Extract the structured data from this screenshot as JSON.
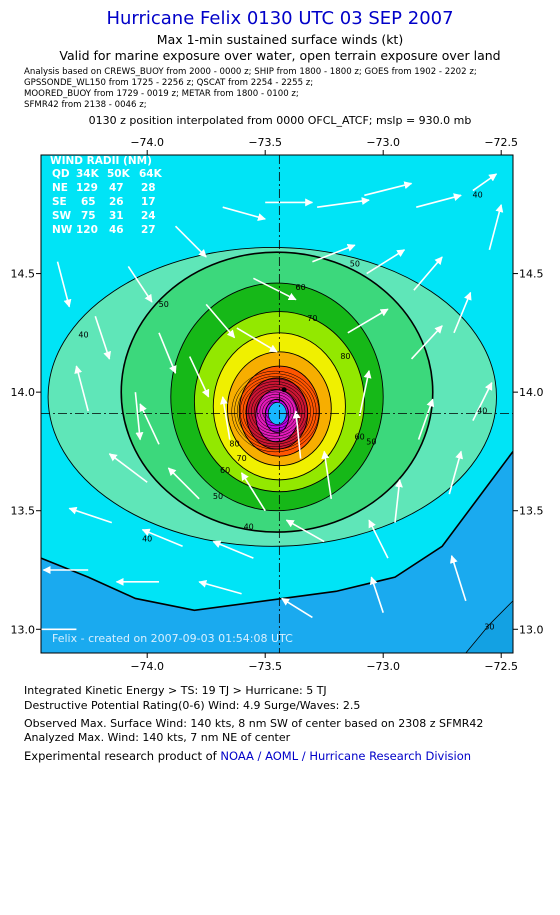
{
  "header": {
    "title": "Hurricane Felix 0130 UTC 03 SEP 2007",
    "subtitle": "Max 1-min sustained surface winds (kt)",
    "valid": "Valid for marine exposure over water, open terrain exposure over land",
    "analysis_lines": [
      "Analysis based on  CREWS_BUOY from 2000 - 0000 z;  SHIP from 1800 - 1800 z;  GOES from 1902 - 2202 z;",
      "GPSSONDE_WL150 from 1725 - 2256 z;  QSCAT from 2254 - 2255 z;",
      "MOORED_BUOY from 1729 - 0019 z;  METAR from 1800 - 0100 z;",
      "SFMR42 from 2138 - 0046 z;"
    ],
    "position_line": "0130 z position interpolated from 0000 OFCL_ATCF; mslp = 930.0 mb"
  },
  "chart_data": {
    "type": "heatmap",
    "title": "Hurricane Felix 0130 UTC 03 SEP 2007",
    "subtitle": "Max 1-min sustained surface winds (kt)",
    "xlim": [
      -74.45,
      -72.45
    ],
    "ylim": [
      12.9,
      15.0
    ],
    "x_ticks": [
      -74.0,
      -73.5,
      -73.0,
      -72.5
    ],
    "x_tick_labels": [
      "−74.0",
      "−73.5",
      "−73.0",
      "−72.5"
    ],
    "y_ticks": [
      13.0,
      13.5,
      14.0,
      14.5
    ],
    "y_tick_labels": [
      "13.0",
      "13.5",
      "14.0",
      "14.5"
    ],
    "center": {
      "lon": -73.44,
      "lat": 13.91
    },
    "max_wind_point": {
      "lon": -73.42,
      "lat": 14.01
    },
    "contour_labels": [
      {
        "text": "30",
        "lon": -72.55,
        "lat": 13.0
      },
      {
        "text": "40",
        "lon": -74.27,
        "lat": 14.23
      },
      {
        "text": "40",
        "lon": -72.6,
        "lat": 14.82
      },
      {
        "text": "40",
        "lon": -73.57,
        "lat": 13.42
      },
      {
        "text": "40",
        "lon": -74.0,
        "lat": 13.37
      },
      {
        "text": "40",
        "lon": -72.58,
        "lat": 13.91
      },
      {
        "text": "50",
        "lon": -73.93,
        "lat": 14.36
      },
      {
        "text": "50",
        "lon": -73.12,
        "lat": 14.53
      },
      {
        "text": "50",
        "lon": -73.7,
        "lat": 13.55
      },
      {
        "text": "50",
        "lon": -73.05,
        "lat": 13.78
      },
      {
        "text": "60",
        "lon": -73.35,
        "lat": 14.43
      },
      {
        "text": "60",
        "lon": -73.67,
        "lat": 13.66
      },
      {
        "text": "60",
        "lon": -73.1,
        "lat": 13.8
      },
      {
        "text": "70",
        "lon": -73.3,
        "lat": 14.3
      },
      {
        "text": "70",
        "lon": -73.6,
        "lat": 13.71
      },
      {
        "text": "80",
        "lon": -73.63,
        "lat": 13.77
      },
      {
        "text": "80",
        "lon": -73.16,
        "lat": 14.14
      }
    ],
    "contour_levels": [
      40,
      50,
      60,
      70,
      80,
      90,
      100,
      110,
      120,
      130
    ],
    "contour_rings": [
      {
        "level": 30,
        "cx": -73.44,
        "cy": 13.9,
        "rx": 1.18,
        "ry": 0.97,
        "bold": true
      },
      {
        "level": 40,
        "cx": -73.47,
        "cy": 13.98,
        "rx": 0.95,
        "ry": 0.63,
        "bold": false
      },
      {
        "level": 50,
        "cx": -73.45,
        "cy": 14.0,
        "rx": 0.66,
        "ry": 0.59,
        "bold": true
      },
      {
        "level": 60,
        "cx": -73.45,
        "cy": 13.98,
        "rx": 0.45,
        "ry": 0.48,
        "bold": false
      },
      {
        "level": 70,
        "cx": -73.44,
        "cy": 13.96,
        "rx": 0.36,
        "ry": 0.38,
        "bold": false
      },
      {
        "level": 80,
        "cx": -73.44,
        "cy": 13.94,
        "rx": 0.28,
        "ry": 0.31,
        "bold": false
      },
      {
        "level": 90,
        "cx": -73.44,
        "cy": 13.93,
        "rx": 0.22,
        "ry": 0.24,
        "bold": false
      },
      {
        "level": 100,
        "cx": -73.44,
        "cy": 13.92,
        "rx": 0.17,
        "ry": 0.19,
        "bold": false
      },
      {
        "level": 110,
        "cx": -73.45,
        "cy": 13.91,
        "rx": 0.13,
        "ry": 0.15,
        "bold": false
      },
      {
        "level": 120,
        "cx": -73.45,
        "cy": 13.9,
        "rx": 0.09,
        "ry": 0.11,
        "bold": false
      },
      {
        "level": 130,
        "cx": -73.45,
        "cy": 13.9,
        "rx": 0.05,
        "ry": 0.07,
        "bold": false
      }
    ],
    "colors": {
      "fill_20": "#1aaaef",
      "fill_30": "#00e4f6",
      "fill_40": "#5fe6b8",
      "fill_50": "#3cd87c",
      "fill_60": "#16b818",
      "fill_70": "#93e800",
      "fill_80": "#f0f000",
      "fill_90": "#f7ae00",
      "fill_100": "#ff5500",
      "fill_110": "#cc1533",
      "fill_120": "#e21ab8",
      "fill_130": "#bb00e6",
      "arrow": "#ffffff",
      "title": "#0000c8",
      "link": "#0000c8"
    },
    "wind_radii": {
      "heading": "WIND RADII (NM)",
      "columns": [
        "QD",
        "34K",
        "50K",
        "64K"
      ],
      "rows": [
        [
          "NE",
          "129",
          "47",
          "28"
        ],
        [
          "SE",
          "65",
          "26",
          "17"
        ],
        [
          "SW",
          "75",
          "31",
          "24"
        ],
        [
          "NW",
          "120",
          "46",
          "27"
        ]
      ]
    },
    "watermark": "Felix - created on 2007-09-03 01:54:08 UTC",
    "wind_vectors": [
      {
        "lon": -74.38,
        "lat": 14.55,
        "dlon": 0.05,
        "dlat": -0.19
      },
      {
        "lon": -74.22,
        "lat": 14.32,
        "dlon": 0.06,
        "dlat": -0.18
      },
      {
        "lon": -74.08,
        "lat": 14.53,
        "dlon": 0.1,
        "dlat": -0.15
      },
      {
        "lon": -73.88,
        "lat": 14.7,
        "dlon": 0.13,
        "dlat": -0.13
      },
      {
        "lon": -73.68,
        "lat": 14.78,
        "dlon": 0.18,
        "dlat": -0.05
      },
      {
        "lon": -73.5,
        "lat": 14.8,
        "dlon": 0.2,
        "dlat": 0.0
      },
      {
        "lon": -73.28,
        "lat": 14.78,
        "dlon": 0.22,
        "dlat": 0.03
      },
      {
        "lon": -73.08,
        "lat": 14.83,
        "dlon": 0.2,
        "dlat": 0.05
      },
      {
        "lon": -72.86,
        "lat": 14.78,
        "dlon": 0.19,
        "dlat": 0.05
      },
      {
        "lon": -72.62,
        "lat": 14.85,
        "dlon": 0.1,
        "dlat": 0.07
      },
      {
        "lon": -72.55,
        "lat": 14.6,
        "dlon": 0.05,
        "dlat": 0.19
      },
      {
        "lon": -73.95,
        "lat": 14.25,
        "dlon": 0.07,
        "dlat": -0.17
      },
      {
        "lon": -73.75,
        "lat": 14.37,
        "dlon": 0.12,
        "dlat": -0.14
      },
      {
        "lon": -73.55,
        "lat": 14.48,
        "dlon": 0.18,
        "dlat": -0.09
      },
      {
        "lon": -73.3,
        "lat": 14.55,
        "dlon": 0.18,
        "dlat": 0.07
      },
      {
        "lon": -73.07,
        "lat": 14.5,
        "dlon": 0.16,
        "dlat": 0.1
      },
      {
        "lon": -72.87,
        "lat": 14.43,
        "dlon": 0.12,
        "dlat": 0.14
      },
      {
        "lon": -72.7,
        "lat": 14.25,
        "dlon": 0.07,
        "dlat": 0.17
      },
      {
        "lon": -74.05,
        "lat": 14.0,
        "dlon": 0.02,
        "dlat": -0.2
      },
      {
        "lon": -73.82,
        "lat": 14.15,
        "dlon": 0.08,
        "dlat": -0.17
      },
      {
        "lon": -73.62,
        "lat": 14.27,
        "dlon": 0.17,
        "dlat": -0.1
      },
      {
        "lon": -73.15,
        "lat": 14.25,
        "dlon": 0.17,
        "dlat": 0.1
      },
      {
        "lon": -72.88,
        "lat": 14.14,
        "dlon": 0.13,
        "dlat": 0.14
      },
      {
        "lon": -72.62,
        "lat": 13.88,
        "dlon": 0.08,
        "dlat": 0.16
      },
      {
        "lon": -74.25,
        "lat": 13.92,
        "dlon": -0.05,
        "dlat": 0.19
      },
      {
        "lon": -73.95,
        "lat": 13.78,
        "dlon": -0.08,
        "dlat": 0.17
      },
      {
        "lon": -73.65,
        "lat": 13.8,
        "dlon": -0.03,
        "dlat": 0.18
      },
      {
        "lon": -73.35,
        "lat": 13.72,
        "dlon": -0.02,
        "dlat": 0.2
      },
      {
        "lon": -73.1,
        "lat": 13.9,
        "dlon": 0.04,
        "dlat": 0.19
      },
      {
        "lon": -72.85,
        "lat": 13.8,
        "dlon": 0.06,
        "dlat": 0.17
      },
      {
        "lon": -74.0,
        "lat": 13.62,
        "dlon": -0.16,
        "dlat": 0.12
      },
      {
        "lon": -73.78,
        "lat": 13.55,
        "dlon": -0.13,
        "dlat": 0.13
      },
      {
        "lon": -73.5,
        "lat": 13.5,
        "dlon": -0.1,
        "dlat": 0.16
      },
      {
        "lon": -73.22,
        "lat": 13.55,
        "dlon": -0.03,
        "dlat": 0.2
      },
      {
        "lon": -72.95,
        "lat": 13.45,
        "dlon": 0.02,
        "dlat": 0.18
      },
      {
        "lon": -72.72,
        "lat": 13.57,
        "dlon": 0.05,
        "dlat": 0.18
      },
      {
        "lon": -74.15,
        "lat": 13.45,
        "dlon": -0.18,
        "dlat": 0.06
      },
      {
        "lon": -73.85,
        "lat": 13.35,
        "dlon": -0.17,
        "dlat": 0.07
      },
      {
        "lon": -73.55,
        "lat": 13.3,
        "dlon": -0.17,
        "dlat": 0.07
      },
      {
        "lon": -73.25,
        "lat": 13.37,
        "dlon": -0.16,
        "dlat": 0.09
      },
      {
        "lon": -72.98,
        "lat": 13.3,
        "dlon": -0.08,
        "dlat": 0.16
      },
      {
        "lon": -72.65,
        "lat": 13.12,
        "dlon": -0.06,
        "dlat": 0.19
      },
      {
        "lon": -74.25,
        "lat": 13.25,
        "dlon": -0.19,
        "dlat": 0.0
      },
      {
        "lon": -73.95,
        "lat": 13.2,
        "dlon": -0.18,
        "dlat": 0.0
      },
      {
        "lon": -73.6,
        "lat": 13.15,
        "dlon": -0.18,
        "dlat": 0.05
      },
      {
        "lon": -73.3,
        "lat": 13.05,
        "dlon": -0.13,
        "dlat": 0.08
      },
      {
        "lon": -73.0,
        "lat": 13.07,
        "dlon": -0.05,
        "dlat": 0.15
      },
      {
        "lon": -74.3,
        "lat": 13.0,
        "dlon": -0.2,
        "dlat": 0.0
      }
    ]
  },
  "footer": {
    "ike": "Integrated Kinetic Energy > TS: 19 TJ   > Hurricane: 5 TJ",
    "dpr": "Destructive Potential Rating(0-6)   Wind: 4.9 Surge/Waves: 2.5",
    "observed": "Observed Max. Surface Wind: 140 kts, 8 nm SW of center based on 2308 z SFMR42",
    "analyzed": "Analyzed Max. Wind: 140 kts, 7 nm NE of center",
    "credit_prefix": "Experimental research product of ",
    "credit_link": "NOAA / AOML / Hurricane Research Division"
  }
}
